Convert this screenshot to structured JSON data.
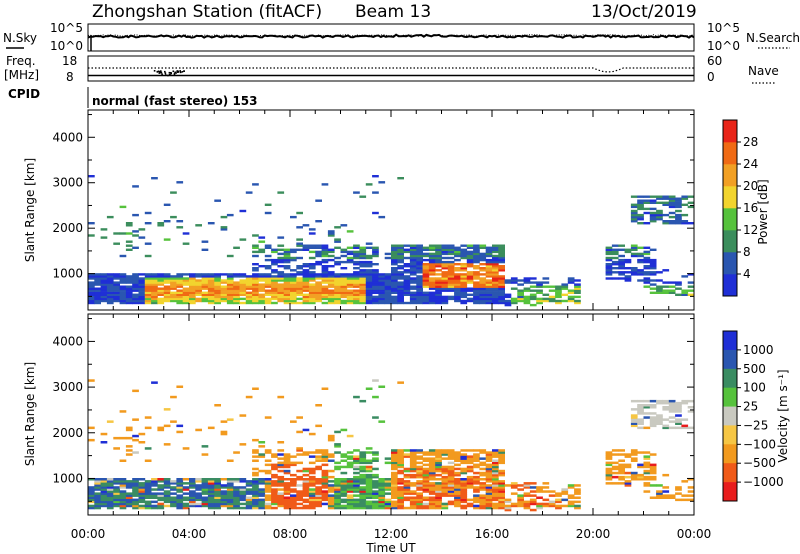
{
  "header": {
    "station": "Zhongshan Station (fitACF)",
    "beam": "Beam 13",
    "date": "13/Oct/2019"
  },
  "panels": {
    "nsky_label": "N.Sky",
    "nsearch_label": "N.Search",
    "nsky_ticks": [
      "10^5",
      "10^0"
    ],
    "freq_label_1": "Freq.",
    "freq_label_2": "[MHz]",
    "freq_ticks": [
      "18",
      "8"
    ],
    "nave_label": "Nave",
    "nave_ticks": [
      "60",
      "0"
    ],
    "cpid_label": "CPID",
    "cpid_text": "normal (fast stereo) 153"
  },
  "colors": {
    "power": [
      "#1f2fd6",
      "#2a56b0",
      "#3b8d5c",
      "#56c23c",
      "#f2d42e",
      "#f2a024",
      "#f06a14",
      "#e82418"
    ],
    "velocity": [
      "#e81c1c",
      "#f05a18",
      "#f29a1e",
      "#f6c644",
      "#c9c9c0",
      "#56c23c",
      "#3a8c62",
      "#2a56b0",
      "#1f2fd6"
    ],
    "noise_line": "#000000"
  },
  "chart_data": [
    {
      "type": "heatmap",
      "name": "power",
      "xlabel": "",
      "ylabel": "Slant Range [km]",
      "ylim": [
        200,
        4600
      ],
      "xlim_hours": [
        0,
        24
      ],
      "yticks": [
        "1000",
        "2000",
        "3000",
        "4000"
      ],
      "colorbar": {
        "label": "Power [dB]",
        "ticks": [
          "4",
          "8",
          "12",
          "16",
          "20",
          "24",
          "28"
        ],
        "range": [
          0,
          32
        ]
      },
      "grid": false
    },
    {
      "type": "heatmap",
      "name": "velocity",
      "xlabel": "Time UT",
      "ylabel": "Slant Range [km]",
      "ylim": [
        200,
        4600
      ],
      "xlim_hours": [
        0,
        24
      ],
      "xticks": [
        "00:00",
        "04:00",
        "08:00",
        "12:00",
        "16:00",
        "20:00",
        "00:00"
      ],
      "yticks": [
        "1000",
        "2000",
        "3000",
        "4000"
      ],
      "colorbar": {
        "label": "Velocity [m s⁻¹]",
        "ticks": [
          "1000",
          "500",
          "100",
          "25",
          "−25",
          "−100",
          "−500",
          "−1000"
        ]
      },
      "grid": false
    }
  ]
}
